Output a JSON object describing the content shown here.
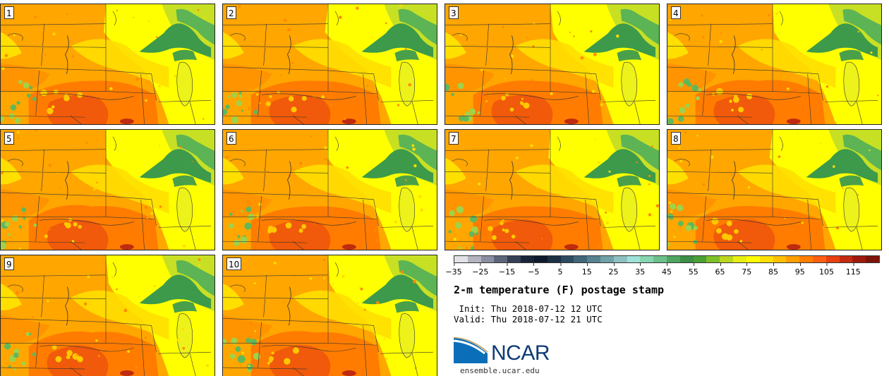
{
  "panels": [
    {
      "label": "1"
    },
    {
      "label": "2"
    },
    {
      "label": "3"
    },
    {
      "label": "4"
    },
    {
      "label": "5"
    },
    {
      "label": "6"
    },
    {
      "label": "7"
    },
    {
      "label": "8"
    },
    {
      "label": "9"
    },
    {
      "label": "10"
    }
  ],
  "colorbar": {
    "colors": [
      "#e2e3e8",
      "#b3b4c0",
      "#8a8ea0",
      "#5d6579",
      "#343f55",
      "#1a2438",
      "#0e1a2b",
      "#1b2f45",
      "#2e4a60",
      "#416678",
      "#56838f",
      "#6fa1a6",
      "#8dc0c0",
      "#9ee2d8",
      "#86d6b0",
      "#6cc08a",
      "#4fa561",
      "#3c8f45",
      "#4aa034",
      "#7ec02a",
      "#b9d81e",
      "#e8ef10",
      "#ffff00",
      "#ffe000",
      "#ffc000",
      "#ff9f00",
      "#ff7f00",
      "#ff5f10",
      "#e84010",
      "#c42a10",
      "#a01a0c",
      "#7c1408"
    ],
    "ticks": [
      "−35",
      "−25",
      "−15",
      "−5",
      "5",
      "15",
      "25",
      "35",
      "45",
      "55",
      "65",
      "75",
      "85",
      "95",
      "105",
      "115"
    ]
  },
  "title": "2-m temperature (F) postage stamp",
  "init": " Init: Thu 2018-07-12 12 UTC",
  "valid": "Valid: Thu 2018-07-12 21 UTC",
  "logo": {
    "text": "NCAR",
    "site": "ensemble.ucar.edu"
  }
}
